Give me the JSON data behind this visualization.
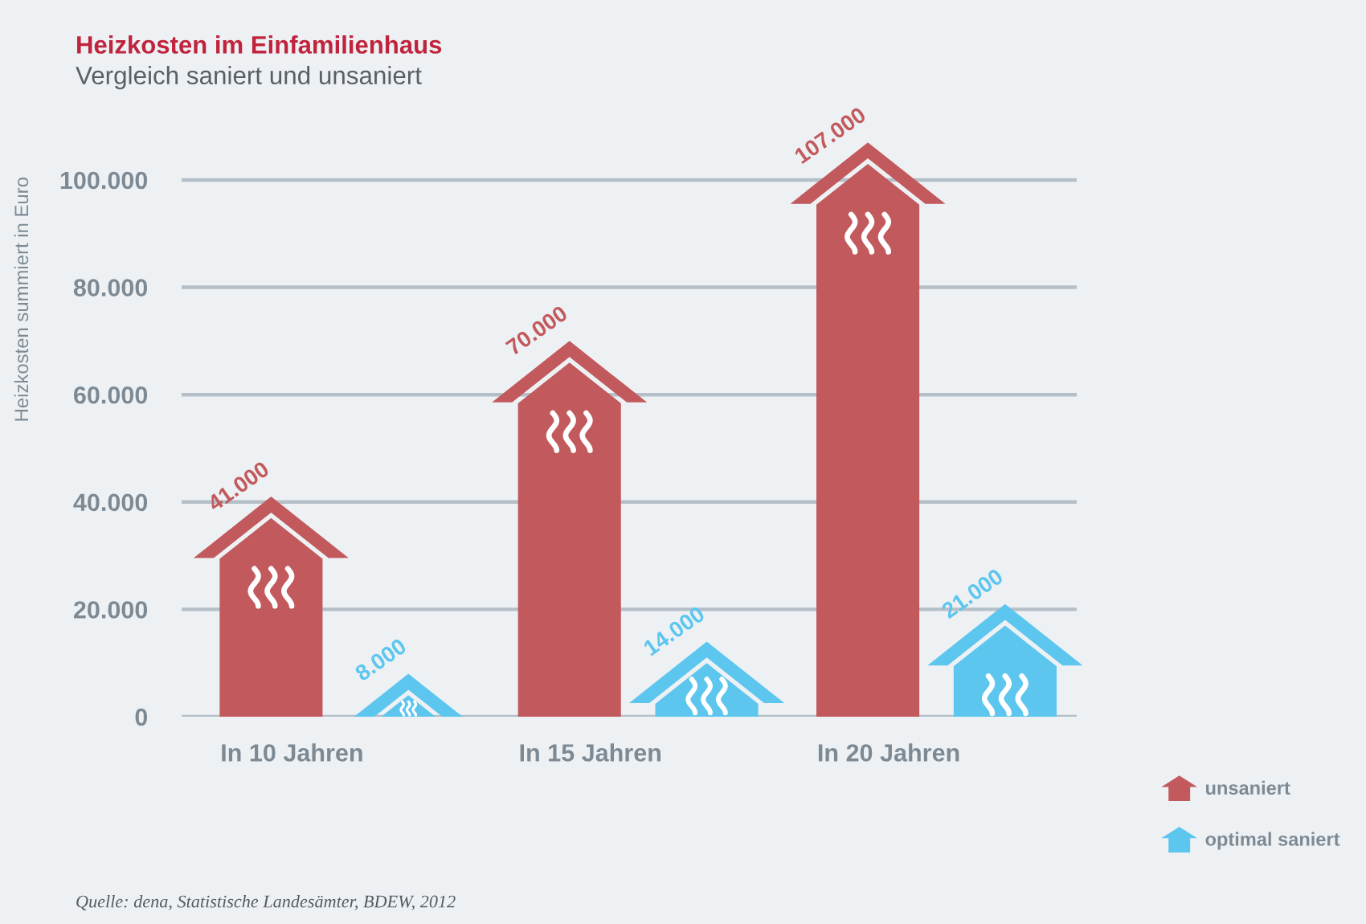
{
  "chart_data": {
    "type": "bar",
    "title": "Heizkosten im Einfamilienhaus",
    "subtitle": "Vergleich saniert und unsaniert",
    "ylabel": "Heizkosten summiert in Euro",
    "categories": [
      "In 10 Jahren",
      "In 15 Jahren",
      "In 20 Jahren"
    ],
    "series": [
      {
        "name": "unsaniert",
        "color": "#c25a5d",
        "values": [
          41000,
          70000,
          107000
        ],
        "value_labels": [
          "41.000",
          "70.000",
          "107.000"
        ]
      },
      {
        "name": "optimal saniert",
        "color": "#5cc6ef",
        "values": [
          8000,
          14000,
          21000
        ],
        "value_labels": [
          "8.000",
          "14.000",
          "21.000"
        ]
      }
    ],
    "ylim": [
      0,
      107000
    ],
    "yticks": [
      0,
      {
        "value": 20000,
        "label": "20.000"
      },
      {
        "value": 40000,
        "label": "40.000"
      },
      {
        "value": 60000,
        "label": "60.000"
      },
      {
        "value": 80000,
        "label": "80.000"
      },
      {
        "value": 100000,
        "label": "100.000"
      }
    ],
    "grid": "y",
    "legend": "bottom right",
    "annotations": [
      "Quelle: dena, Statistische Landesämter, BDEW, 2012"
    ]
  }
}
